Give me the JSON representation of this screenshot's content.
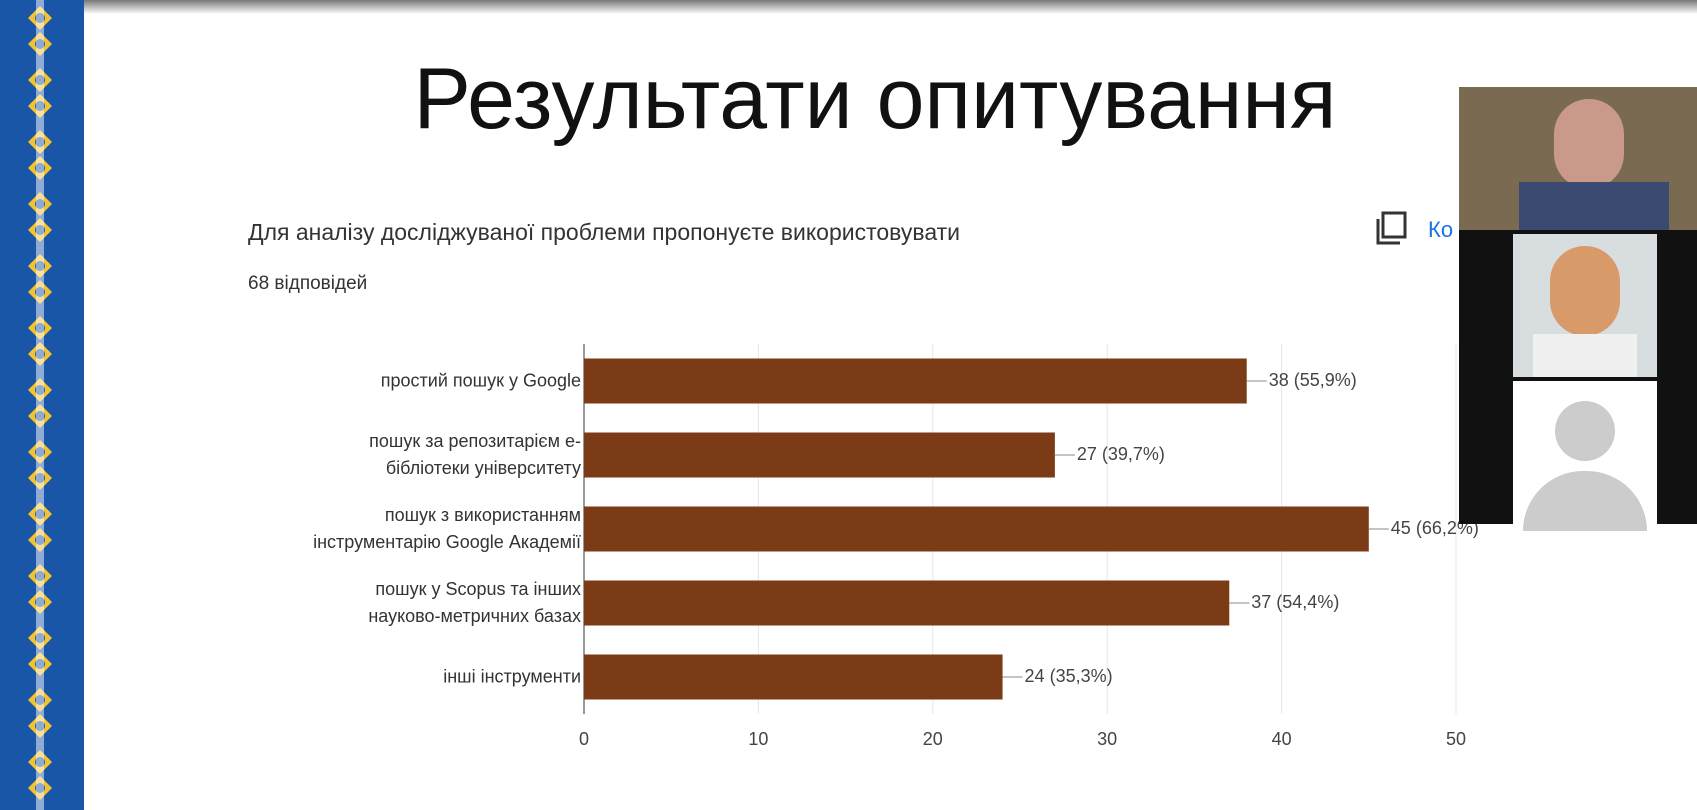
{
  "slide_title": "Результати опитування",
  "copy_label": "Ко",
  "chart_data": {
    "type": "bar",
    "orientation": "horizontal",
    "title": "Для аналізу досліджуваної проблеми пропонуєте використовувати",
    "subtitle": "68 відповідей",
    "categories": [
      "простий пошук у Google",
      "пошук за репозитарієм е-\nбібліотеки університету",
      "пошук з використанням\nінструментарію Google Академії",
      "пошук у Scopus та інших\nнауково-метричних базах",
      "інші інструменти"
    ],
    "values": [
      38,
      27,
      45,
      37,
      24
    ],
    "value_labels": [
      "38 (55,9%)",
      "27 (39,7%)",
      "45 (66,2%)",
      "37 (54,4%)",
      "24 (35,3%)"
    ],
    "color": "#7b3b16",
    "xlim": [
      0,
      50
    ],
    "xticks": [
      0,
      10,
      20,
      30,
      40,
      50
    ],
    "grid": true
  }
}
